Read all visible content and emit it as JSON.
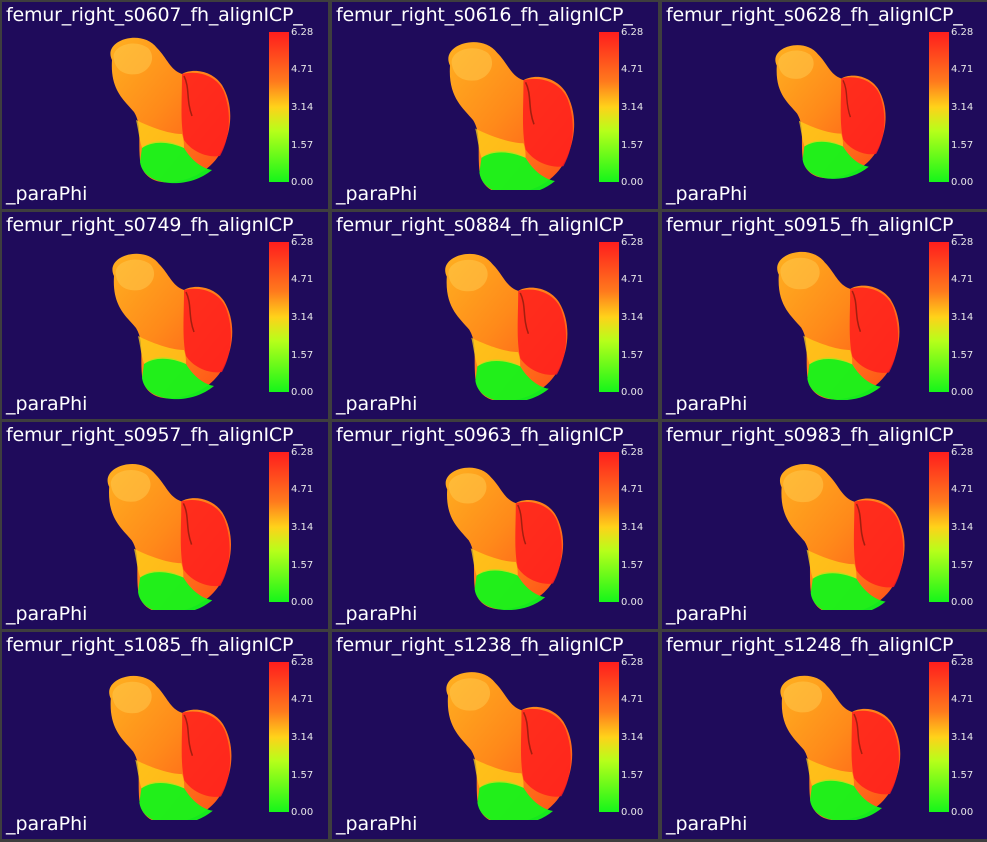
{
  "colorbar": {
    "ticks": [
      "6.28",
      "4.71",
      "3.14",
      "1.57",
      "0.00"
    ],
    "colors": {
      "high": "#ff1d1d",
      "mid_high": "#ff7a1d",
      "mid": "#ffd21a",
      "low_mid": "#b6ff1a",
      "low": "#15f51a"
    }
  },
  "background_color": "#1f0b5b",
  "panels": [
    {
      "title": "femur_right_s0607_fh_alignICP_",
      "field": "_paraPhi"
    },
    {
      "title": "femur_right_s0616_fh_alignICP_",
      "field": "_paraPhi"
    },
    {
      "title": "femur_right_s0628_fh_alignICP_",
      "field": "_paraPhi"
    },
    {
      "title": "femur_right_s0749_fh_alignICP_",
      "field": "_paraPhi"
    },
    {
      "title": "femur_right_s0884_fh_alignICP_",
      "field": "_paraPhi"
    },
    {
      "title": "femur_right_s0915_fh_alignICP_",
      "field": "_paraPhi"
    },
    {
      "title": "femur_right_s0957_fh_alignICP_",
      "field": "_paraPhi"
    },
    {
      "title": "femur_right_s0963_fh_alignICP_",
      "field": "_paraPhi"
    },
    {
      "title": "femur_right_s0983_fh_alignICP_",
      "field": "_paraPhi"
    },
    {
      "title": "femur_right_s1085_fh_alignICP_",
      "field": "_paraPhi"
    },
    {
      "title": "femur_right_s1238_fh_alignICP_",
      "field": "_paraPhi"
    },
    {
      "title": "femur_right_s1248_fh_alignICP_",
      "field": "_paraPhi"
    }
  ]
}
